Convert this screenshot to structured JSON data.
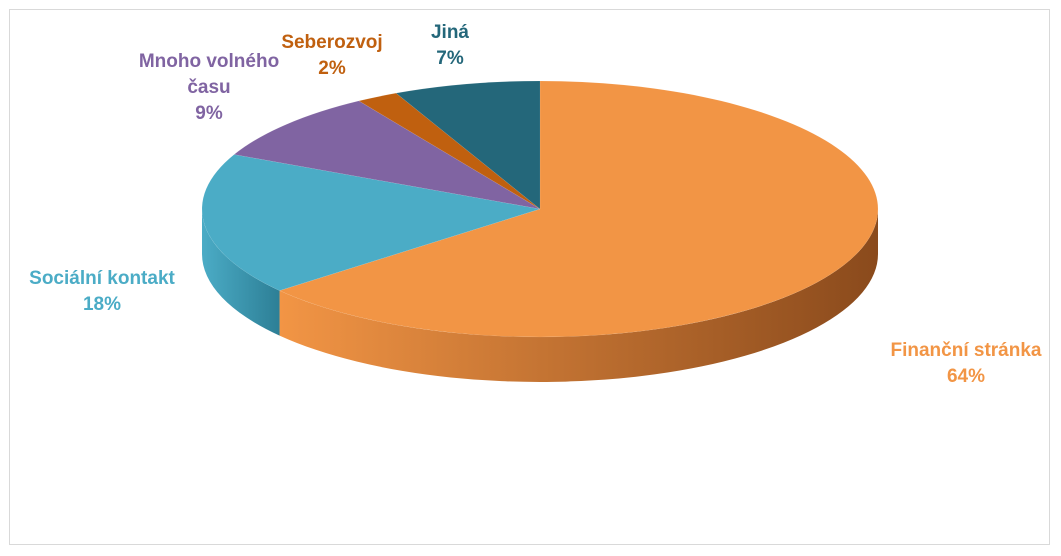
{
  "chart_data": {
    "type": "pie",
    "title": "",
    "slices": [
      {
        "name": "Finanční stránka",
        "value": 64,
        "label": "64%",
        "color": "#F29545",
        "side_color": "#8A4A1C"
      },
      {
        "name": "Sociální kontakt",
        "value": 18,
        "label": "18%",
        "color": "#4BACC6",
        "side_color": "#2D7F96"
      },
      {
        "name": "Mnoho volného času",
        "value": 9,
        "label": "9%",
        "color": "#8064A2",
        "side_color": "#5A4477"
      },
      {
        "name": "Seberozvoj",
        "value": 2,
        "label": "2%",
        "color": "#C0600F",
        "side_color": "#7F3F0A"
      },
      {
        "name": "Jiná",
        "value": 7,
        "label": "7%",
        "color": "#24677A",
        "side_color": "#184652"
      }
    ],
    "label_lines": {
      "Finanční stránka": [
        "Finanční stránka"
      ],
      "Sociální kontakt": [
        "Sociální kontakt"
      ],
      "Mnoho volného času": [
        "Mnoho volného",
        "času"
      ],
      "Seberozvoj": [
        "Seberozvoj"
      ],
      "Jiná": [
        "Jiná"
      ]
    },
    "legend": "none",
    "style": "3d-pie"
  }
}
